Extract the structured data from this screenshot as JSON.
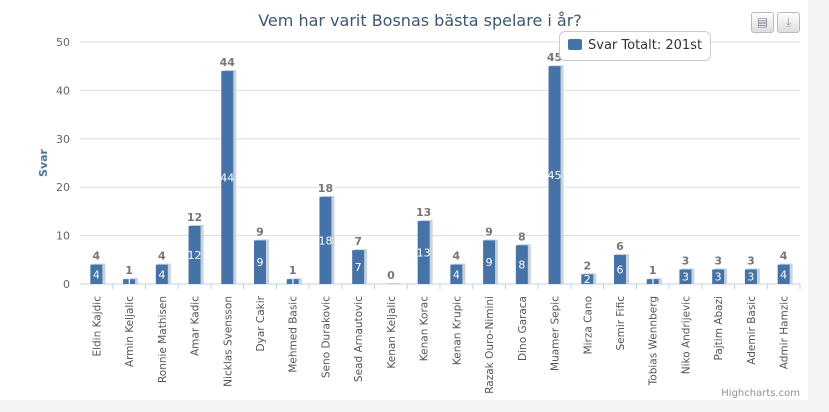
{
  "chart_data": {
    "type": "bar",
    "title": "Vem har varit Bosnas bästa spelare i år?",
    "xlabel": "",
    "ylabel": "Svar",
    "ylim": [
      0,
      50
    ],
    "yticks": [
      0,
      10,
      20,
      30,
      40,
      50
    ],
    "grid": true,
    "categories": [
      "Eldin Kajdic",
      "Armin Keljalic",
      "Ronnie Mathisen",
      "Amar Kadic",
      "Nicklas Svensson",
      "Dyar Cakir",
      "Mehmed Basic",
      "Seno Durakovic",
      "Sead Arnautovic",
      "Kenan Keljalic",
      "Kenan Korac",
      "Kenan Krupic",
      "Razak Ouro-Nimini",
      "Dino Garaca",
      "Muamer Sepic",
      "Mirza Cano",
      "Semir Fific",
      "Tobias Wennberg",
      "Niko Andrijevic",
      "Pajtim Abazi",
      "Ademir Basic",
      "Admir Hamzic"
    ],
    "series": [
      {
        "name": "Svar Totalt",
        "values": [
          4,
          1,
          4,
          12,
          44,
          9,
          1,
          18,
          7,
          0,
          13,
          4,
          9,
          8,
          45,
          2,
          6,
          1,
          3,
          3,
          3,
          4
        ]
      }
    ],
    "color": "#4572a7"
  },
  "tooltip": {
    "text": "Svar Totalt: 201st"
  },
  "credits": "Highcharts.com",
  "buttons": {
    "print": "print-icon",
    "export": "download-icon"
  }
}
